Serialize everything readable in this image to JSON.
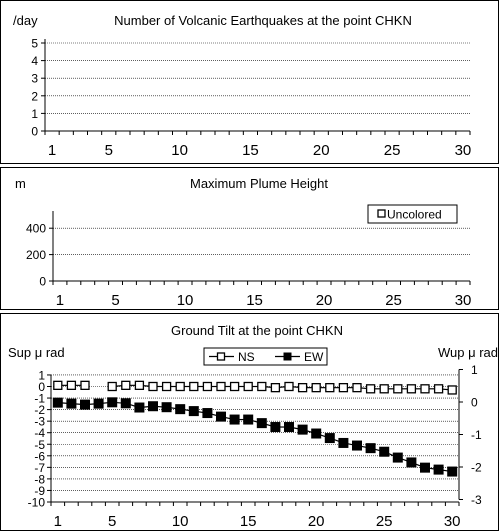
{
  "chart_data": [
    {
      "type": "bar",
      "title": "Number of Volcanic Earthquakes at the point CHKN",
      "ylabel": "/day",
      "x": [
        1,
        2,
        3,
        4,
        5,
        6,
        7,
        8,
        9,
        10,
        11,
        12,
        13,
        14,
        15,
        16,
        17,
        18,
        19,
        20,
        21,
        22,
        23,
        24,
        25,
        26,
        27,
        28,
        29,
        30
      ],
      "xticks": [
        "1",
        "5",
        "10",
        "15",
        "20",
        "25",
        "30"
      ],
      "yticks": [
        "0",
        "1",
        "2",
        "3",
        "4",
        "5"
      ],
      "ylim": [
        0,
        5
      ],
      "grid": true,
      "values": [
        0,
        0,
        0,
        0,
        0,
        0,
        0,
        0,
        0,
        0,
        0,
        0,
        0,
        0,
        0,
        0,
        0,
        0,
        0,
        0,
        0,
        0,
        0,
        0,
        0,
        0,
        0,
        0,
        0,
        0
      ]
    },
    {
      "type": "bar",
      "title": "Maximum Plume Height",
      "ylabel": "m",
      "xticks": [
        "1",
        "5",
        "10",
        "15",
        "20",
        "25",
        "30"
      ],
      "yticks": [
        "0",
        "200",
        "400"
      ],
      "ylim": [
        0,
        500
      ],
      "grid": true,
      "legend": {
        "position": "top-right",
        "entries": [
          "Uncolored"
        ]
      },
      "values": [
        0,
        0,
        0,
        0,
        0,
        0,
        0,
        0,
        0,
        0,
        0,
        0,
        0,
        0,
        0,
        0,
        0,
        0,
        0,
        0,
        0,
        0,
        0,
        0,
        0,
        0,
        0,
        0,
        0,
        0
      ]
    },
    {
      "type": "line",
      "title": "Ground Tilt at the point CHKN",
      "ylabel_left": "Sup μ rad",
      "ylabel_right": "Wup μ rad",
      "x": [
        1,
        2,
        3,
        4,
        5,
        6,
        7,
        8,
        9,
        10,
        11,
        12,
        13,
        14,
        15,
        16,
        17,
        18,
        19,
        20,
        21,
        22,
        23,
        24,
        25,
        26,
        27,
        28,
        29,
        30
      ],
      "xticks": [
        "1",
        "5",
        "10",
        "15",
        "20",
        "25",
        "30"
      ],
      "yticks_left": [
        "1",
        "0",
        "-1",
        "-2",
        "-3",
        "-4",
        "-5",
        "-6",
        "-7",
        "-8",
        "-9",
        "-10"
      ],
      "yticks_right": [
        "1",
        "0",
        "-1",
        "-2",
        "-3"
      ],
      "ylim_left": [
        -10,
        1
      ],
      "ylim_right": [
        -3,
        1
      ],
      "grid": true,
      "legend": {
        "position": "top-center"
      },
      "series": [
        {
          "name": "NS",
          "axis": "left",
          "marker": "open-square",
          "values": [
            0.1,
            0.1,
            0.1,
            null,
            0.0,
            0.1,
            0.1,
            0.0,
            0.0,
            0.0,
            0.0,
            0.0,
            0.0,
            0.0,
            0.0,
            0.0,
            -0.1,
            0.0,
            -0.1,
            -0.1,
            -0.1,
            -0.1,
            -0.1,
            -0.2,
            -0.2,
            -0.2,
            -0.2,
            -0.2,
            -0.2,
            -0.3
          ]
        },
        {
          "name": "EW",
          "axis": "right",
          "marker": "filled-square",
          "values": [
            -0.02,
            -0.05,
            -0.08,
            -0.05,
            -0.01,
            -0.04,
            -0.17,
            -0.13,
            -0.16,
            -0.22,
            -0.28,
            -0.34,
            -0.45,
            -0.54,
            -0.54,
            -0.65,
            -0.77,
            -0.77,
            -0.85,
            -0.97,
            -1.11,
            -1.26,
            -1.34,
            -1.42,
            -1.53,
            -1.71,
            -1.86,
            -2.02,
            -2.08,
            -2.14
          ]
        }
      ]
    }
  ]
}
